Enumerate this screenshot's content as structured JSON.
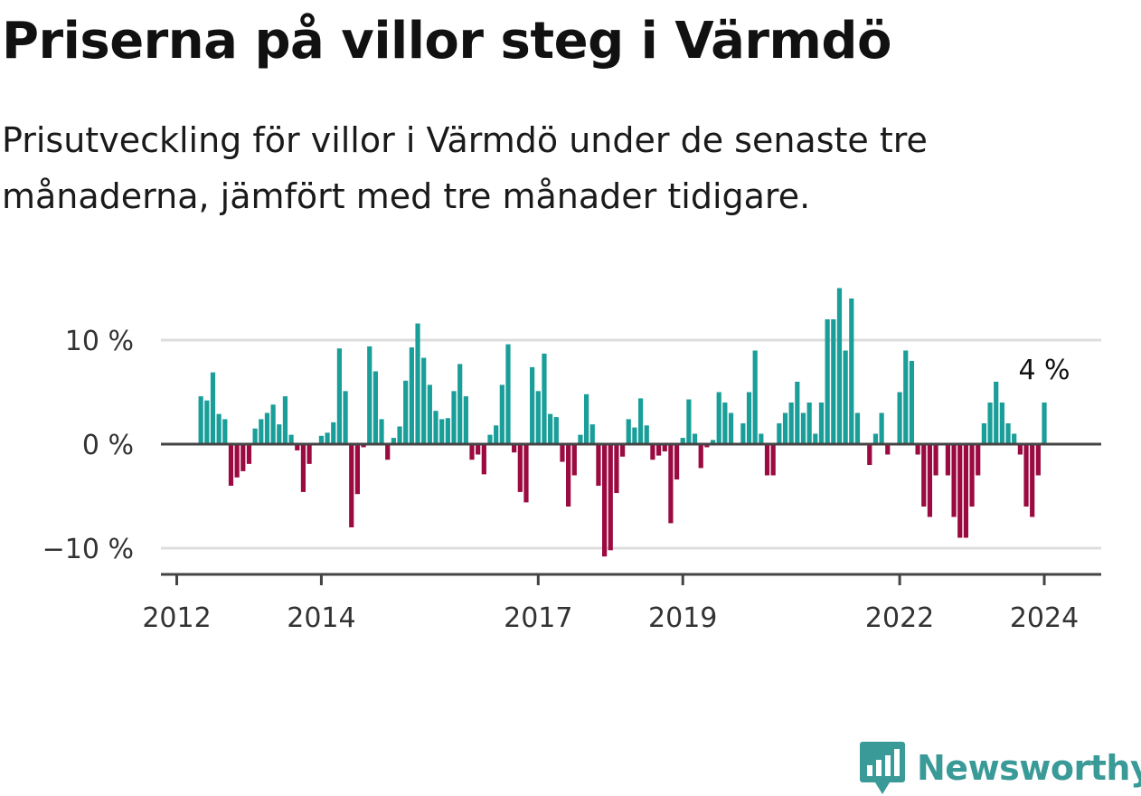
{
  "title": "Priserna på villor steg i Värmdö",
  "subtitle": "Prisutveckling för villor i Värmdö under de senaste tre månaderna, jämfört med tre månader tidigare.",
  "brand": {
    "name": "Newsworthy",
    "icon": "newsworthy-logo-icon"
  },
  "colors": {
    "positive": "#1a9e99",
    "negative": "#9b0a40",
    "grid": "#dddddd",
    "axis": "#444444"
  },
  "chart_data": {
    "type": "bar",
    "x_unit": "month",
    "start": "2012-05",
    "ylim": [
      -12,
      16
    ],
    "yticks": [
      {
        "value": 10,
        "label": "10 %"
      },
      {
        "value": 0,
        "label": "0 %"
      },
      {
        "value": -10,
        "label": "−10 %"
      }
    ],
    "xticks": [
      {
        "value": "2012-01",
        "label": "2012"
      },
      {
        "value": "2014-01",
        "label": "2014"
      },
      {
        "value": "2017-01",
        "label": "2017"
      },
      {
        "value": "2019-01",
        "label": "2019"
      },
      {
        "value": "2022-01",
        "label": "2022"
      },
      {
        "value": "2024-01",
        "label": "2024"
      }
    ],
    "values": [
      4.6,
      4.2,
      6.9,
      2.9,
      2.4,
      -4.0,
      -3.2,
      -2.6,
      -1.9,
      1.5,
      2.4,
      3.0,
      3.8,
      1.9,
      4.6,
      0.9,
      -0.6,
      -4.6,
      -1.9,
      0.0,
      0.8,
      1.1,
      2.1,
      9.2,
      5.1,
      -8.0,
      -4.8,
      -0.3,
      9.4,
      7.0,
      2.4,
      -1.5,
      0.6,
      1.7,
      6.1,
      9.3,
      11.6,
      8.3,
      5.7,
      3.2,
      2.4,
      2.5,
      5.1,
      7.7,
      4.6,
      -1.5,
      -1.0,
      -2.9,
      0.9,
      1.8,
      5.7,
      9.6,
      -0.8,
      -4.6,
      -5.6,
      7.4,
      5.1,
      8.7,
      2.9,
      2.6,
      -1.7,
      -6.0,
      -3.0,
      0.9,
      4.8,
      1.9,
      -4.0,
      -10.8,
      -10.2,
      -4.7,
      -1.2,
      2.4,
      1.6,
      4.4,
      1.8,
      -1.5,
      -1.1,
      -0.7,
      -7.6,
      -3.4,
      0.6,
      4.3,
      1.0,
      -2.3,
      -0.3,
      0.4,
      5.0,
      4.0,
      3.0,
      0.0,
      2.0,
      5.0,
      9.0,
      1.0,
      -3.0,
      -3.0,
      2.0,
      3.0,
      4.0,
      6.0,
      3.0,
      4.0,
      1.0,
      4.0,
      12.0,
      12.0,
      15.0,
      9.0,
      14.0,
      3.0,
      0.0,
      -2.0,
      1.0,
      3.0,
      -1.0,
      0.0,
      5.0,
      9.0,
      8.0,
      -1.0,
      -6.0,
      -7.0,
      -3.0,
      0.0,
      -3.0,
      -7.0,
      -9.0,
      -9.0,
      -6.0,
      -3.0,
      2.0,
      4.0,
      6.0,
      4.0,
      2.0,
      1.0,
      -1.0,
      -6.0,
      -7.0,
      -3.0,
      4.0
    ],
    "annotation": "4 %"
  }
}
